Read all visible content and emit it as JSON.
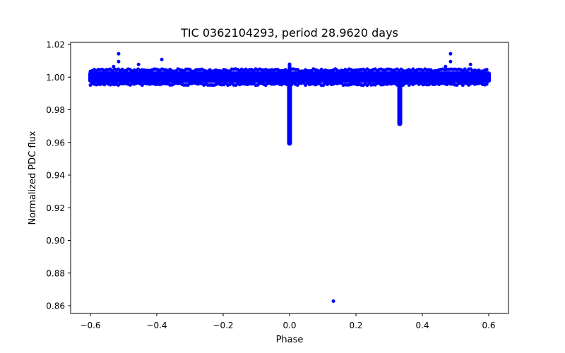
{
  "chart_data": {
    "type": "scatter",
    "title": "TIC 0362104293, period 28.9620 days",
    "xlabel": "Phase",
    "ylabel": "Normalized PDC flux",
    "xlim": [
      -0.65,
      0.65
    ],
    "ylim": [
      0.8595,
      1.0213
    ],
    "xticks": [
      -0.6,
      -0.4,
      -0.2,
      0.0,
      0.2,
      0.4,
      0.6
    ],
    "xtick_labels": [
      "−0.6",
      "−0.4",
      "−0.2",
      "0.0",
      "0.2",
      "0.4",
      "0.6"
    ],
    "yticks": [
      0.86,
      0.88,
      0.9,
      0.92,
      0.94,
      0.96,
      0.98,
      1.0,
      1.02
    ],
    "ytick_labels": [
      "0.86",
      "0.88",
      "0.90",
      "0.92",
      "0.94",
      "0.96",
      "0.98",
      "1.00",
      "1.02"
    ],
    "grid": false,
    "legend": null,
    "marker_color": "#0000ff",
    "baseline": {
      "phase_range": [
        -0.6,
        0.6
      ],
      "flux_center": 1.0,
      "flux_spread": [
        0.9965,
        1.0035
      ]
    },
    "primary_eclipse": {
      "phase": 0.0,
      "min_flux": 0.958,
      "max_flux": 1.009
    },
    "secondary_eclipse": {
      "phase": 0.332,
      "min_flux": 0.97
    },
    "outliers": [
      {
        "x": -0.515,
        "y": 1.0143
      },
      {
        "x": -0.515,
        "y": 1.0095
      },
      {
        "x": -0.53,
        "y": 1.0065
      },
      {
        "x": -0.455,
        "y": 1.0078
      },
      {
        "x": -0.385,
        "y": 1.0108
      },
      {
        "x": 0.485,
        "y": 1.0143
      },
      {
        "x": 0.485,
        "y": 1.0095
      },
      {
        "x": 0.47,
        "y": 1.0065
      },
      {
        "x": 0.545,
        "y": 1.0078
      },
      {
        "x": 0.132,
        "y": 0.8628
      }
    ]
  }
}
